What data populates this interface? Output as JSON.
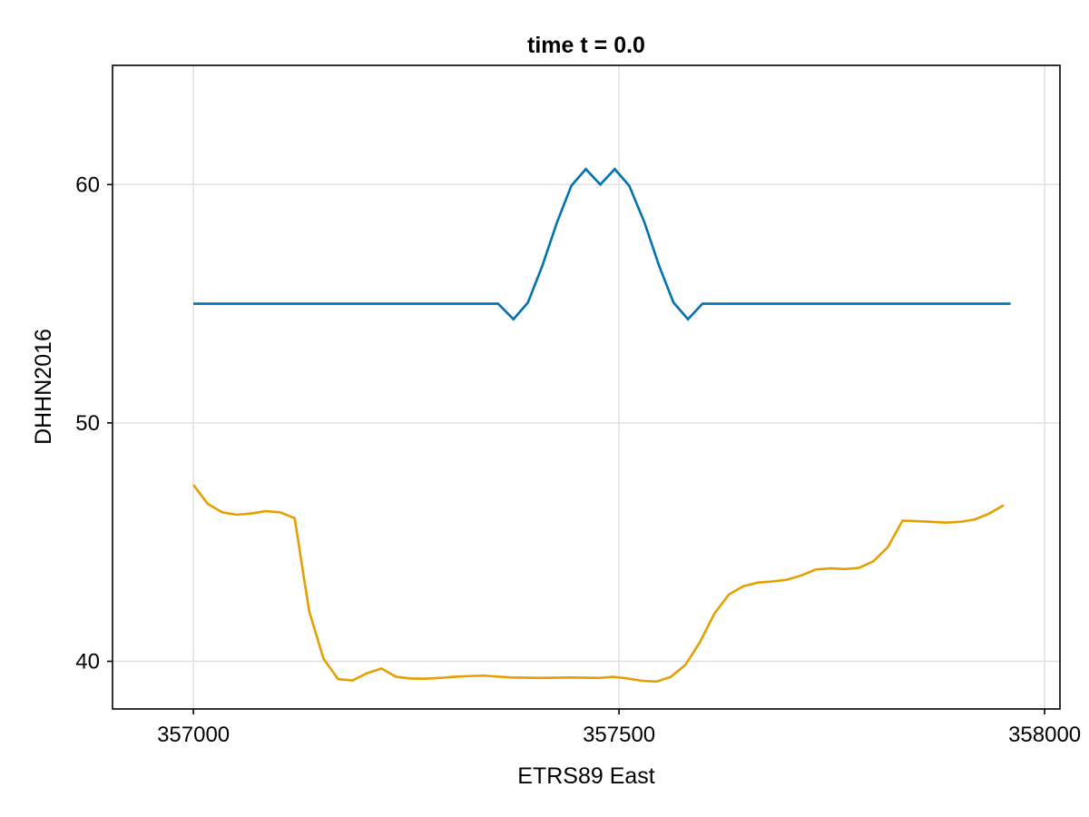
{
  "chart_data": {
    "type": "line",
    "title": "time t = 0.0",
    "xlabel": "ETRS89 East",
    "ylabel": "DHHN2016",
    "xlim": [
      356905,
      358018
    ],
    "ylim": [
      38.0,
      65.0
    ],
    "x_ticks": [
      {
        "value": 357000,
        "label": "357000"
      },
      {
        "value": 357500,
        "label": "357500"
      },
      {
        "value": 358000,
        "label": "358000"
      }
    ],
    "y_ticks": [
      {
        "value": 40,
        "label": "40"
      },
      {
        "value": 50,
        "label": "50"
      },
      {
        "value": 60,
        "label": "60"
      }
    ],
    "grid": true,
    "legend": "none",
    "series": [
      {
        "color": "#0072b2",
        "points": [
          [
            357000,
            55.0
          ],
          [
            357358,
            55.0
          ],
          [
            357376,
            54.35
          ],
          [
            357393,
            55.05
          ],
          [
            357410,
            56.6
          ],
          [
            357427,
            58.4
          ],
          [
            357444,
            59.95
          ],
          [
            357461,
            60.65
          ],
          [
            357478,
            60.0
          ],
          [
            357495,
            60.65
          ],
          [
            357512,
            59.95
          ],
          [
            357530,
            58.4
          ],
          [
            357547,
            56.6
          ],
          [
            357564,
            55.05
          ],
          [
            357581,
            54.35
          ],
          [
            357598,
            55.0
          ],
          [
            357960,
            55.0
          ]
        ]
      },
      {
        "color": "#e69f00",
        "points": [
          [
            357000,
            47.4
          ],
          [
            357017,
            46.6
          ],
          [
            357034,
            46.25
          ],
          [
            357051,
            46.15
          ],
          [
            357068,
            46.2
          ],
          [
            357085,
            46.3
          ],
          [
            357102,
            46.25
          ],
          [
            357119,
            46.0
          ],
          [
            357136,
            42.1
          ],
          [
            357153,
            40.1
          ],
          [
            357170,
            39.25
          ],
          [
            357187,
            39.2
          ],
          [
            357204,
            39.5
          ],
          [
            357221,
            39.7
          ],
          [
            357238,
            39.35
          ],
          [
            357255,
            39.28
          ],
          [
            357272,
            39.27
          ],
          [
            357289,
            39.3
          ],
          [
            357306,
            39.35
          ],
          [
            357323,
            39.38
          ],
          [
            357340,
            39.4
          ],
          [
            357374,
            39.32
          ],
          [
            357408,
            39.3
          ],
          [
            357442,
            39.32
          ],
          [
            357476,
            39.3
          ],
          [
            357493,
            39.35
          ],
          [
            357510,
            39.28
          ],
          [
            357527,
            39.18
          ],
          [
            357544,
            39.15
          ],
          [
            357561,
            39.35
          ],
          [
            357578,
            39.85
          ],
          [
            357595,
            40.8
          ],
          [
            357612,
            42.0
          ],
          [
            357629,
            42.8
          ],
          [
            357646,
            43.15
          ],
          [
            357663,
            43.3
          ],
          [
            357680,
            43.35
          ],
          [
            357697,
            43.42
          ],
          [
            357714,
            43.6
          ],
          [
            357731,
            43.85
          ],
          [
            357748,
            43.9
          ],
          [
            357765,
            43.87
          ],
          [
            357782,
            43.92
          ],
          [
            357799,
            44.2
          ],
          [
            357816,
            44.8
          ],
          [
            357833,
            45.9
          ],
          [
            357850,
            45.88
          ],
          [
            357884,
            45.82
          ],
          [
            357901,
            45.85
          ],
          [
            357918,
            45.95
          ],
          [
            357935,
            46.2
          ],
          [
            357952,
            46.55
          ]
        ]
      }
    ]
  }
}
